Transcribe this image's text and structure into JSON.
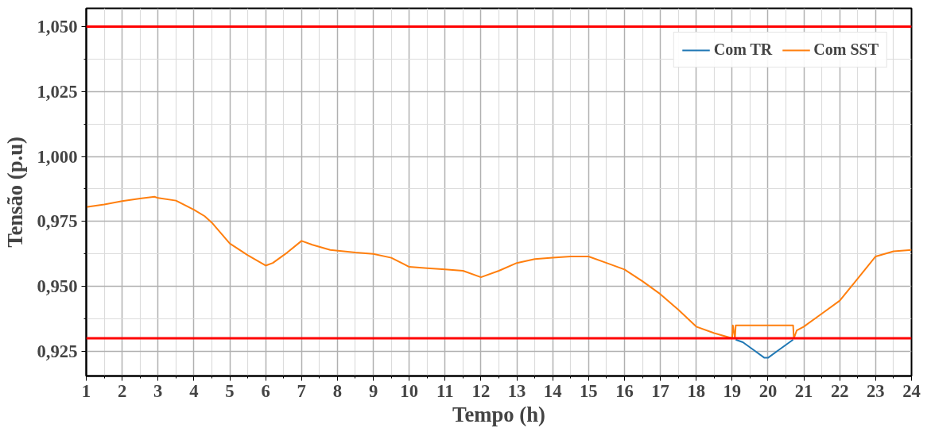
{
  "chart_data": {
    "type": "line",
    "xlabel": "Tempo (h)",
    "ylabel": "Tensão (p.u)",
    "xlim": [
      1,
      24
    ],
    "ylim": [
      0.9155,
      1.057
    ],
    "xticks": [
      1,
      2,
      3,
      4,
      5,
      6,
      7,
      8,
      9,
      10,
      11,
      12,
      13,
      14,
      15,
      16,
      17,
      18,
      19,
      20,
      21,
      22,
      23,
      24,
      {
        "value": 1.5,
        "label": null
      },
      {
        "value": 2.5,
        "label": null
      },
      {
        "value": 3.5,
        "label": null
      },
      {
        "value": 4.5,
        "label": null
      },
      {
        "value": 5.5,
        "label": null
      },
      {
        "value": 6.5,
        "label": null
      },
      {
        "value": 7.5,
        "label": null
      },
      {
        "value": 8.5,
        "label": null
      },
      {
        "value": 9.5,
        "label": null
      },
      {
        "value": 10.5,
        "label": null
      },
      {
        "value": 11.5,
        "label": null
      },
      {
        "value": 12.5,
        "label": null
      },
      {
        "value": 13.5,
        "label": null
      },
      {
        "value": 14.5,
        "label": null
      },
      {
        "value": 15.5,
        "label": null
      },
      {
        "value": 16.5,
        "label": null
      },
      {
        "value": 17.5,
        "label": null
      },
      {
        "value": 18.5,
        "label": null
      },
      {
        "value": 19.5,
        "label": null
      },
      {
        "value": 20.5,
        "label": null
      },
      {
        "value": 21.5,
        "label": null
      },
      {
        "value": 22.5,
        "label": null
      },
      {
        "value": 23.5,
        "label": null
      }
    ],
    "yticks": [
      {
        "value": 0.925,
        "label": "0,925"
      },
      {
        "value": 0.95,
        "label": "0,950"
      },
      {
        "value": 0.975,
        "label": "0,975"
      },
      {
        "value": 1.0,
        "label": "1,000"
      },
      {
        "value": 1.025,
        "label": "1,025"
      },
      {
        "value": 1.05,
        "label": "1,050"
      },
      {
        "value": 0.9375,
        "label": null
      },
      {
        "value": 0.9625,
        "label": null
      },
      {
        "value": 0.9875,
        "label": null
      },
      {
        "value": 1.0125,
        "label": null
      },
      {
        "value": 1.0375,
        "label": null
      }
    ],
    "grid": true,
    "legend": "top right",
    "line_style": "solid",
    "marker": "none",
    "ref_lines": [
      {
        "axis": "y",
        "value": 1.05,
        "label": null,
        "color": "#ff0000"
      },
      {
        "axis": "y",
        "value": 0.93,
        "label": null,
        "color": "#ff0000"
      }
    ],
    "series": [
      {
        "name": "Com TR",
        "color": "#1f77b4",
        "x": [
          19.1,
          19.3,
          19.6,
          19.9,
          20.0,
          20.3,
          20.7
        ],
        "values": [
          0.9295,
          0.9285,
          0.9255,
          0.9225,
          0.9225,
          0.9255,
          0.9295
        ]
      },
      {
        "name": "Com SST",
        "color": "#ff7f0e",
        "x": [
          1.0,
          1.5,
          2.0,
          2.5,
          2.9,
          3.0,
          3.5,
          4.0,
          4.3,
          4.5,
          5.0,
          5.5,
          6.0,
          6.2,
          6.6,
          7.0,
          7.3,
          7.8,
          8.5,
          9.0,
          9.5,
          10.0,
          10.5,
          11.0,
          11.5,
          12.0,
          12.5,
          13.0,
          13.5,
          14.0,
          14.5,
          15.0,
          15.5,
          16.0,
          16.5,
          17.0,
          17.5,
          18.0,
          18.5,
          19.0,
          19.02,
          19.08,
          19.1,
          20.7,
          20.72,
          20.8,
          21.0,
          21.5,
          22.0,
          22.5,
          23.0,
          23.5,
          24.0
        ],
        "values": [
          0.9805,
          0.9815,
          0.9828,
          0.9838,
          0.9845,
          0.984,
          0.983,
          0.9795,
          0.977,
          0.9745,
          0.9665,
          0.962,
          0.958,
          0.959,
          0.963,
          0.9675,
          0.966,
          0.964,
          0.963,
          0.9625,
          0.961,
          0.9575,
          0.957,
          0.9565,
          0.956,
          0.9535,
          0.956,
          0.959,
          0.9605,
          0.961,
          0.9615,
          0.9615,
          0.959,
          0.9565,
          0.952,
          0.947,
          0.941,
          0.9345,
          0.932,
          0.93,
          0.935,
          0.93,
          0.935,
          0.935,
          0.93,
          0.933,
          0.9345,
          0.9395,
          0.9445,
          0.953,
          0.9615,
          0.9635,
          0.964
        ]
      }
    ]
  }
}
